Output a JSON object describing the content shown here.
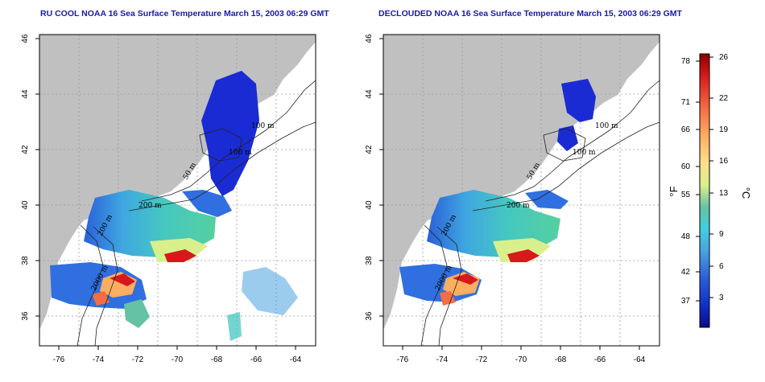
{
  "panels": [
    {
      "title": "RU COOL NOAA 16 Sea Surface Temperature March 15, 2003 06:29 GMT",
      "x_ticks": [
        "-76",
        "-74",
        "-72",
        "-70",
        "-68",
        "-66",
        "-64"
      ],
      "y_ticks": [
        "36",
        "38",
        "40",
        "42",
        "44",
        "46"
      ],
      "contour_labels": [
        "100 m",
        "100 m",
        "50 m",
        "200 m",
        "2000 m",
        "200 m"
      ]
    },
    {
      "title": "DECLOUDED NOAA 16 Sea Surface Temperature March 15, 2003 06:29 GMT",
      "x_ticks": [
        "-76",
        "-74",
        "-72",
        "-70",
        "-68",
        "-66",
        "-64"
      ],
      "y_ticks": [
        "36",
        "38",
        "40",
        "42",
        "44",
        "46"
      ],
      "contour_labels": [
        "100 m",
        "100 m",
        "50 m",
        "200 m",
        "2000 m",
        "200 m"
      ]
    }
  ],
  "colorbar": {
    "fahrenheit_label": "°F",
    "celsius_label": "°C",
    "fahrenheit_ticks": [
      "78",
      "71",
      "66",
      "60",
      "55",
      "48",
      "42",
      "37"
    ],
    "celsius_ticks": [
      "26",
      "22",
      "19",
      "16",
      "13",
      "9",
      "6",
      "3"
    ],
    "colors": [
      "#8b0000",
      "#d7191c",
      "#f46d43",
      "#fdae61",
      "#fee08b",
      "#d9ef8b",
      "#66c2a5",
      "#3fd0e0",
      "#4aa3df",
      "#2b5fd9",
      "#1030c8",
      "#0a0a8a"
    ]
  },
  "colors": {
    "land": "#c0c0c0",
    "title": "#1a1aa6",
    "grid": "#9a9a9a"
  }
}
